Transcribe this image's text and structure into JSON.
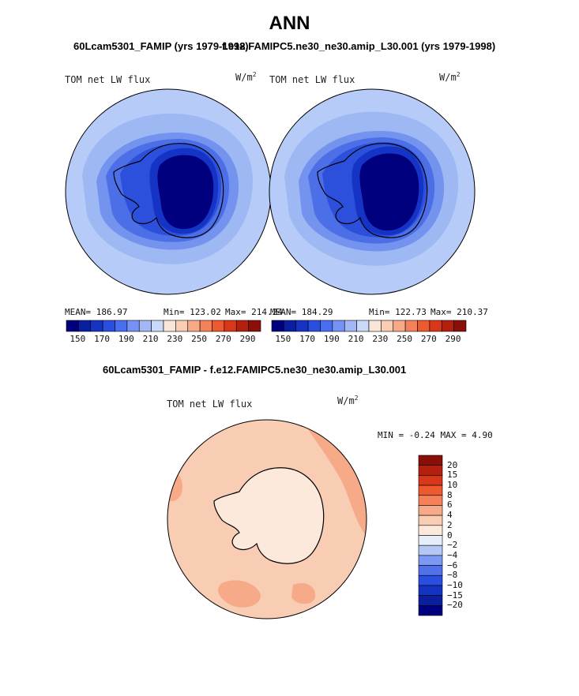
{
  "page": {
    "title": "ANN",
    "left_case": "60Lcam5301_FAMIP (yrs 1979-1998)",
    "right_case": "f.e12.FAMIPC5.ne30_ne30.amip_L30.001 (yrs 1979-1998)",
    "diff_title": "60Lcam5301_FAMIP - f.e12.FAMIPC5.ne30_ne30.amip_L30.001"
  },
  "panels": [
    {
      "id": "left",
      "variable": "TOM net LW flux",
      "units": "W/m",
      "units_sup": "2",
      "mean": "MEAN= 186.97",
      "min": "Min= 123.02",
      "max": "Max= 214.24"
    },
    {
      "id": "right",
      "variable": "TOM net LW flux",
      "units": "W/m",
      "units_sup": "2",
      "mean": "MEAN= 184.29",
      "min": "Min= 122.73",
      "max": "Max= 210.37"
    },
    {
      "id": "diff",
      "variable": "TOM net LW flux",
      "units": "W/m",
      "units_sup": "2",
      "minmax": "MIN = -0.24 MAX = 4.90"
    }
  ],
  "colorbar_abs": {
    "tick_labels": [
      "150",
      "170",
      "190",
      "210",
      "230",
      "250",
      "270",
      "290"
    ],
    "colors": [
      "#00007f",
      "#0a1fa0",
      "#1733c4",
      "#2a4fe0",
      "#4a6ef0",
      "#7592f4",
      "#a2b8f6",
      "#c9d9f8",
      "#f8e6da",
      "#f9ccb4",
      "#f7aa88",
      "#f3825b",
      "#ee5a2e",
      "#d9371a",
      "#b32010",
      "#8a0f08"
    ]
  },
  "colorbar_diff": {
    "tick_labels": [
      "20",
      "15",
      "10",
      "8",
      "6",
      "4",
      "2",
      "0",
      "−2",
      "−4",
      "−6",
      "−8",
      "−10",
      "−15",
      "−20"
    ],
    "colors": [
      "#8a0f08",
      "#b32010",
      "#d9371a",
      "#ee5a2e",
      "#f3825b",
      "#f7aa88",
      "#f9ccb4",
      "#fde9dc",
      "#e6eefa",
      "#b4c8f5",
      "#7c98f2",
      "#4f72ec",
      "#2a4fe0",
      "#1433c0",
      "#0a1fa0",
      "#00007f"
    ]
  },
  "map_colors": {
    "ocean_outer": "#b6cbf7",
    "ocean_mid": "#9db8f3",
    "sea_ice": "#7393ef",
    "coast_band": "#4c6fe8",
    "shelf": "#2d50dc",
    "plateau_edge": "#1534c6",
    "plateau": "#00007f",
    "diff_base": "#f9ccb4",
    "diff_land": "#fde9dc",
    "diff_high": "#f7aa88"
  }
}
